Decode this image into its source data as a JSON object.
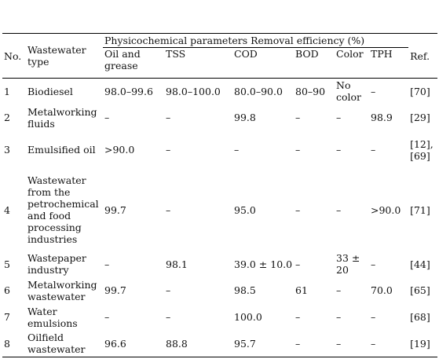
{
  "table": {
    "header": {
      "no": "No.",
      "type": "Wastewater type",
      "group": "Physicochemical parameters Removal efficiency (%)",
      "params": [
        "Oil and grease",
        "TSS",
        "COD",
        "BOD",
        "Color",
        "TPH"
      ],
      "ref": "Ref."
    },
    "rows": [
      [
        "1",
        "Biodiesel",
        "98.0–99.6",
        "98.0–100.0",
        "80.0–90.0",
        "80–90",
        "No color",
        "–",
        "[70]"
      ],
      [
        "2",
        "Metalworking fluids",
        "–",
        "–",
        "99.8",
        "–",
        "–",
        "98.9",
        "[29]"
      ],
      [
        "3",
        "Emulsified oil",
        ">90.0",
        "–",
        "–",
        "–",
        "–",
        "–",
        "[12], [69]"
      ],
      [
        "4",
        "Wastewater from the petrochemical and food processing industries",
        "99.7",
        "–",
        "95.0",
        "–",
        "–",
        ">90.0",
        "[71]"
      ],
      [
        "5",
        "Wastepaper industry",
        "–",
        "98.1",
        "39.0 ± 10.0",
        "–",
        "33 ± 20",
        "–",
        "[44]"
      ],
      [
        "6",
        "Metalworking wastewater",
        "99.7",
        "–",
        "98.5",
        "61",
        "–",
        "70.0",
        "[65]"
      ],
      [
        "7",
        "Water emulsions",
        "–",
        "–",
        "100.0",
        "–",
        "–",
        "–",
        "[68]"
      ],
      [
        "8",
        "Oilfield wastewater",
        "96.6",
        "88.8",
        "95.7",
        "–",
        "–",
        "–",
        "[19]"
      ]
    ]
  }
}
